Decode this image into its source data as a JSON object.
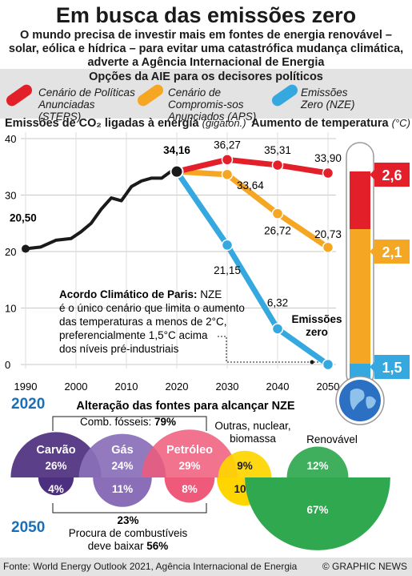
{
  "header": {
    "title": "Em busca das emissões zero",
    "subtitle": "O mundo precisa de investir mais em fontes de energia renovável – solar, eólica e hídrica – para evitar uma catastrófica mudança climática, adverte a Agência Internacional de Energia"
  },
  "options": {
    "title": "Opções da AIE para os decisores políticos",
    "items": [
      {
        "label": "Cenário de Políticas Anunciadas (STEPS)",
        "color": "#e3202a"
      },
      {
        "label": "Cenário de Compromis-sos Anunciados (APS)",
        "color": "#f5a623"
      },
      {
        "label": "Emissões Zero (NZE)",
        "color": "#35a8e0"
      }
    ]
  },
  "emissions_heading": "Emissões de CO₂ ligadas à energia",
  "emissions_unit": "(gigaton.)",
  "temperature_heading": "Aumento de temperatura",
  "temperature_unit": "(°C)",
  "annotation": {
    "title": "Acordo Climático de Paris:",
    "title_tail": "NZE",
    "body": [
      "é o único cenário que limita o aumento",
      "das temperaturas a menos de 2°C,",
      "preferencialmente 1,5°C acima",
      "dos níveis pré-industriais"
    ]
  },
  "zero_label": [
    "Emissões",
    "zero"
  ],
  "chart_data": [
    {
      "type": "line",
      "xlabel": "",
      "ylabel": "",
      "xlim": [
        1990,
        2055
      ],
      "ylim": [
        0,
        40
      ],
      "x_ticks": [
        "1990",
        "2000",
        "2010",
        "2020",
        "2030",
        "2040",
        "2050"
      ],
      "y_ticks": [
        "0",
        "10",
        "20",
        "30",
        "40"
      ],
      "history": {
        "x": [
          1990,
          1993,
          1996,
          1999,
          2001,
          2003,
          2005,
          2007,
          2009,
          2011,
          2013,
          2015,
          2017,
          2019,
          2020
        ],
        "values": [
          20.5,
          20.8,
          22.0,
          22.3,
          23.5,
          25.0,
          27.5,
          29.5,
          29.0,
          31.5,
          32.5,
          33.0,
          33.0,
          34.3,
          34.16
        ]
      },
      "series": [
        {
          "name": "STEPS",
          "color": "#e3202a",
          "x": [
            2020,
            2030,
            2040,
            2050
          ],
          "values": [
            34.16,
            36.27,
            35.31,
            33.9
          ],
          "labels": [
            "34,16",
            "36,27",
            "35,31",
            "33,90"
          ],
          "temperature": "2,6"
        },
        {
          "name": "APS",
          "color": "#f5a623",
          "x": [
            2020,
            2030,
            2040,
            2050
          ],
          "values": [
            34.16,
            33.64,
            26.72,
            20.73
          ],
          "labels": [
            "",
            "33,64",
            "26,72",
            "20,73"
          ],
          "temperature": "2,1"
        },
        {
          "name": "NZE",
          "color": "#35a8e0",
          "x": [
            2020,
            2030,
            2040,
            2050
          ],
          "values": [
            34.16,
            21.15,
            6.32,
            0.0
          ],
          "labels": [
            "",
            "21,15",
            "6,32",
            ""
          ],
          "temperature": "1,5"
        }
      ],
      "start_label": "20,50"
    },
    {
      "type": "bar",
      "title": "Alteração das fontes para alcançar NZE",
      "years": [
        "2020",
        "2050"
      ],
      "fossil_total_label": "Comb. fósseis:",
      "fossil_total_2020": "79%",
      "categories": [
        "Carvão",
        "Gás",
        "Petróleo",
        "Outras, nuclear, biomassa",
        "Renovável"
      ],
      "colors": [
        "#4d2f7f",
        "#8a6fb8",
        "#ef5a7a",
        "#ffd500",
        "#2fa84f"
      ],
      "values_2020": [
        26,
        24,
        29,
        9,
        12
      ],
      "values_2050": [
        4,
        11,
        8,
        10,
        67
      ],
      "labels_2020": [
        "26%",
        "24%",
        "29%",
        "9%",
        "12%"
      ],
      "labels_2050": [
        "4%",
        "11%",
        "8%",
        "10%",
        "67%"
      ],
      "fossil_total_2050": "23%",
      "demand_note": [
        "Procura de combustíveis",
        "deve baixar"
      ],
      "demand_drop": "56%"
    }
  ],
  "footer": {
    "source": "Fonte: World Energy Outlook 2021, Agência Internacional de Energia",
    "credit": "© GRAPHIC NEWS"
  }
}
